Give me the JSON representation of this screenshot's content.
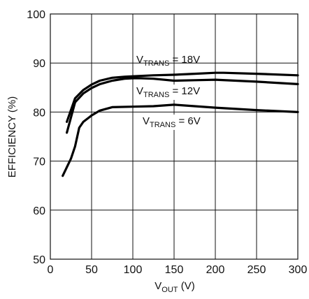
{
  "chart_data": {
    "type": "line",
    "xlabel": {
      "main": "V",
      "sub": "OUT",
      "unit": " (V)"
    },
    "ylabel": "EFFICIENCY (%)",
    "xlim": [
      0,
      300
    ],
    "ylim": [
      50,
      100
    ],
    "xticks": [
      0,
      50,
      100,
      150,
      200,
      250,
      300
    ],
    "yticks": [
      50,
      60,
      70,
      80,
      90,
      100
    ],
    "grid": true,
    "series": [
      {
        "name": {
          "main": "V",
          "sub": "TRANS",
          "rest": " = 18V"
        },
        "x": [
          20,
          30,
          40,
          50,
          60,
          75,
          90,
          100,
          125,
          150,
          175,
          200,
          210,
          250,
          300
        ],
        "y": [
          78.0,
          82.8,
          84.5,
          85.6,
          86.4,
          87.0,
          87.2,
          87.3,
          87.5,
          87.6,
          87.8,
          88.0,
          88.0,
          87.8,
          87.5
        ]
      },
      {
        "name": {
          "main": "V",
          "sub": "TRANS",
          "rest": " = 12V"
        },
        "x": [
          20,
          30,
          40,
          50,
          60,
          75,
          90,
          100,
          110,
          125,
          150,
          175,
          200,
          250,
          300
        ],
        "y": [
          75.8,
          82.0,
          83.8,
          84.9,
          85.7,
          86.4,
          86.8,
          86.9,
          86.9,
          86.8,
          86.4,
          86.5,
          86.6,
          86.2,
          85.7
        ]
      },
      {
        "name": {
          "main": "V",
          "sub": "TRANS",
          "rest": " = 6V"
        },
        "x": [
          15,
          25,
          30,
          35,
          40,
          50,
          60,
          75,
          100,
          125,
          150,
          200,
          250,
          300
        ],
        "y": [
          67.0,
          70.5,
          73.0,
          76.8,
          78.0,
          79.3,
          80.3,
          81.0,
          81.1,
          81.2,
          81.5,
          80.9,
          80.4,
          80.0
        ]
      }
    ]
  }
}
